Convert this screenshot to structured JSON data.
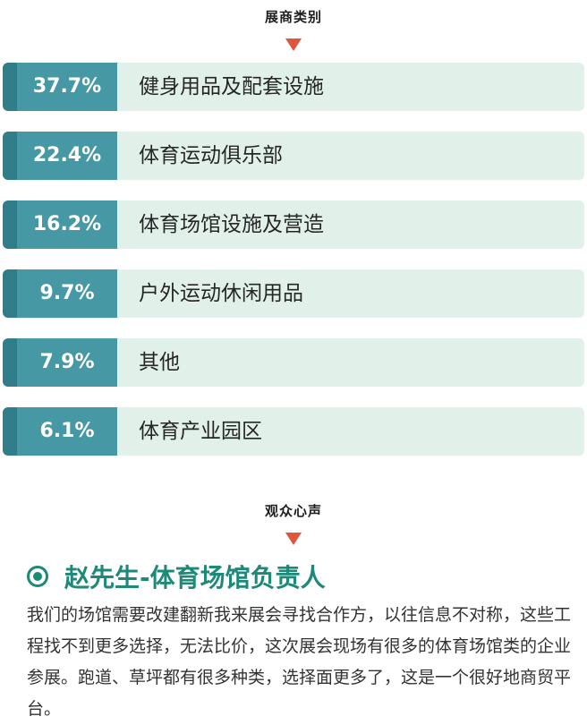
{
  "section1": {
    "title": "展商类别"
  },
  "categories": [
    {
      "percent": "37.7%",
      "label": "健身用品及配套设施"
    },
    {
      "percent": "22.4%",
      "label": "体育运动俱乐部"
    },
    {
      "percent": "16.2%",
      "label": "体育场馆设施及营造"
    },
    {
      "percent": "9.7%",
      "label": "户外运动休闲用品"
    },
    {
      "percent": "7.9%",
      "label": "其他"
    },
    {
      "percent": "6.1%",
      "label": "体育产业园区"
    }
  ],
  "section2": {
    "title": "观众心声"
  },
  "testimonial": {
    "name": "赵先生-体育场馆负责人",
    "text": "我们的场馆需要改建翻新我来展会寻找合作方，以往信息不对称，这些工程找不到更多选择，无法比价，这次展会现场有很多的体育场馆类的企业参展。跑道、草坪都有很多种类，选择面更多了，这是一个很好地商贸平台。"
  },
  "colors": {
    "accent_red": "#e0563c",
    "teal_dark": "#2f7e8a",
    "teal": "#4598a4",
    "bar_bg": "#e1f1ea",
    "heading_green": "#1d8a78"
  },
  "icons": {
    "section_marker": "down-triangle-icon",
    "person_marker": "target-circle-icon"
  }
}
